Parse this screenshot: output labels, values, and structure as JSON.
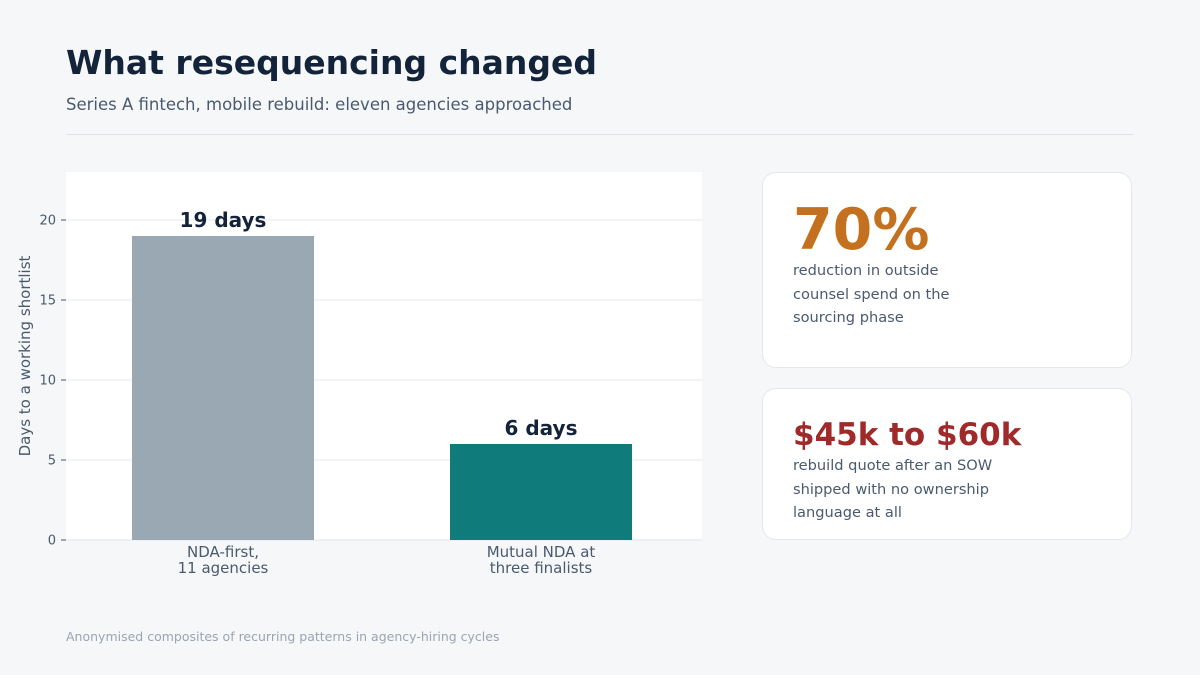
{
  "header": {
    "title": "What resequencing changed",
    "subtitle": "Series A fintech, mobile rebuild: eleven agencies approached"
  },
  "chart_data": {
    "type": "bar",
    "categories": [
      [
        "NDA-first,",
        "11 agencies"
      ],
      [
        "Mutual NDA at",
        "three finalists"
      ]
    ],
    "values": [
      19,
      6
    ],
    "data_labels": [
      "19 days",
      "6 days"
    ],
    "ylabel": "Days to a working shortlist",
    "ylim": [
      0,
      23
    ],
    "yticks": [
      0,
      5,
      10,
      15,
      20
    ],
    "colors": [
      "#9aa8b4",
      "#0f7c7b"
    ],
    "grid": true
  },
  "cards": [
    {
      "value": "70%",
      "description": "reduction in outside counsel spend on the sourcing phase",
      "color": "#c4711f"
    },
    {
      "value": "$45k to $60k",
      "description": "rebuild quote after an SOW shipped with no ownership language at all",
      "color": "#a0292a"
    }
  ],
  "footnote": "Anonymised composites of recurring patterns in agency-hiring cycles"
}
